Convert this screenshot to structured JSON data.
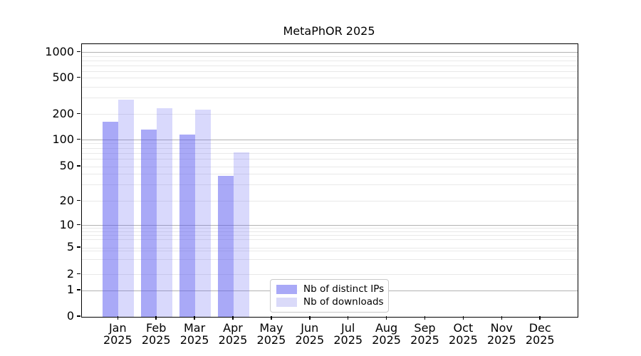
{
  "title": "MetaPhOR 2025",
  "legend": {
    "items": [
      {
        "label": "Nb of distinct IPs",
        "swatch_color": "#a9a9f7"
      },
      {
        "label": "Nb of downloads",
        "swatch_color": "#dadaf9"
      }
    ]
  },
  "axes": {
    "x_months": [
      "Jan",
      "Feb",
      "Mar",
      "Apr",
      "May",
      "Jun",
      "Jul",
      "Aug",
      "Sep",
      "Oct",
      "Nov",
      "Dec"
    ],
    "x_year": "2025",
    "y_tick_values": [
      0,
      1,
      2,
      5,
      10,
      20,
      50,
      100,
      200,
      500,
      1000
    ]
  },
  "colors": {
    "bar_distinct_ips_fill": "rgba(86,86,240,0.51)",
    "bar_downloads_fill": "rgba(86,86,240,0.225)",
    "major_gridline": "#b2b2b2",
    "minor_gridline": "#e9e9e9",
    "axis_spine": "#000000"
  },
  "chart_data": {
    "type": "bar",
    "title": "MetaPhOR 2025",
    "categories": [
      "Jan 2025",
      "Feb 2025",
      "Mar 2025",
      "Apr 2025",
      "May 2025",
      "Jun 2025",
      "Jul 2025",
      "Aug 2025",
      "Sep 2025",
      "Oct 2025",
      "Nov 2025",
      "Dec 2025"
    ],
    "series": [
      {
        "name": "Nb of distinct IPs",
        "values": [
          160,
          130,
          115,
          38,
          0,
          0,
          0,
          0,
          0,
          0,
          0,
          0
        ],
        "color": "rgba(86,86,240,0.51)"
      },
      {
        "name": "Nb of downloads",
        "values": [
          290,
          230,
          220,
          71,
          0,
          0,
          0,
          0,
          0,
          0,
          0,
          0
        ],
        "color": "rgba(86,86,240,0.225)"
      }
    ],
    "xlabel": "",
    "ylabel": "",
    "yscale": "log-with-zero-baseline",
    "yticks": [
      0,
      1,
      2,
      5,
      10,
      20,
      50,
      100,
      200,
      500,
      1000
    ],
    "ylim": [
      0,
      1000
    ],
    "grid": "horizontal only, light minor log gridlines, darker lines at powers of 10",
    "legend_position": "inside bottom, center-right of Apr/May"
  }
}
